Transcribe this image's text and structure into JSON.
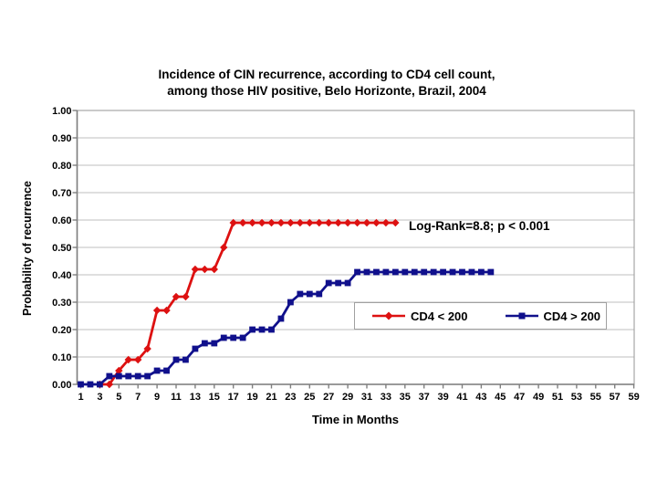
{
  "title": {
    "line1": "Incidence of CIN recurrence, according to CD4 cell count,",
    "line2": "among those HIV positive, Belo Horizonte, Brazil, 2004"
  },
  "annotation": "Log-Rank=8.8; p < 0.001",
  "chart_data": {
    "type": "line",
    "subtype": "kaplan-meier-step",
    "title": "Incidence of CIN recurrence, according to CD4 cell count, among those HIV positive, Belo Horizonte, Brazil, 2004",
    "xlabel": "Time in Months",
    "ylabel": "Probability of recurrence",
    "xlim": [
      1,
      59
    ],
    "ylim": [
      0.0,
      1.0
    ],
    "grid": "horizontal",
    "legend_position": "inside-lower-right",
    "x_ticks": [
      1,
      3,
      5,
      7,
      9,
      11,
      13,
      15,
      17,
      19,
      21,
      23,
      25,
      27,
      29,
      31,
      33,
      35,
      37,
      39,
      41,
      43,
      45,
      47,
      49,
      51,
      53,
      55,
      57,
      59
    ],
    "y_ticks": [
      "0.00",
      "0.10",
      "0.20",
      "0.30",
      "0.40",
      "0.50",
      "0.60",
      "0.70",
      "0.80",
      "0.90",
      "1.00"
    ],
    "colors": {
      "grid": "#bfbfbf",
      "axis": "#7f7f7f",
      "frame": "#a6a6a6"
    },
    "series": [
      {
        "name": "CD4 < 200",
        "color": "#dd1111",
        "marker": "diamond",
        "start_month": 3,
        "values": [
          0.0,
          0.0,
          0.05,
          0.09,
          0.09,
          0.13,
          0.27,
          0.27,
          0.32,
          0.32,
          0.42,
          0.42,
          0.42,
          0.5,
          0.59,
          0.59,
          0.59,
          0.59,
          0.59,
          0.59,
          0.59,
          0.59,
          0.59,
          0.59,
          0.59,
          0.59,
          0.59,
          0.59,
          0.59,
          0.59,
          0.59,
          0.59
        ]
      },
      {
        "name": "CD4 > 200",
        "color": "#10108c",
        "marker": "square",
        "start_month": 1,
        "values": [
          0.0,
          0.0,
          0.0,
          0.03,
          0.03,
          0.03,
          0.03,
          0.03,
          0.05,
          0.05,
          0.09,
          0.09,
          0.13,
          0.15,
          0.15,
          0.17,
          0.17,
          0.17,
          0.2,
          0.2,
          0.2,
          0.24,
          0.3,
          0.33,
          0.33,
          0.33,
          0.37,
          0.37,
          0.37,
          0.41,
          0.41,
          0.41,
          0.41,
          0.41,
          0.41,
          0.41,
          0.41,
          0.41,
          0.41,
          0.41,
          0.41,
          0.41,
          0.41,
          0.41
        ]
      }
    ]
  }
}
